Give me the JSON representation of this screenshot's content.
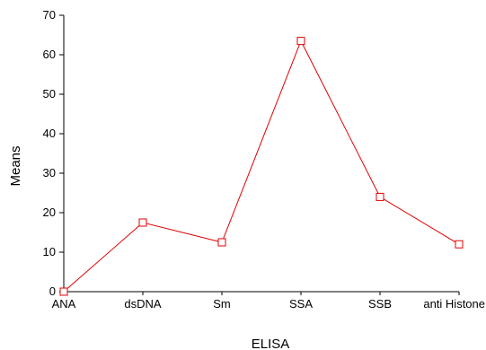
{
  "chart_data": {
    "type": "line",
    "title": "",
    "xlabel": "ELISA",
    "ylabel": "Means",
    "categories": [
      "ANA",
      "dsDNA",
      "Sm",
      "SSA",
      "SSB",
      "anti Histone"
    ],
    "series": [
      {
        "values": [
          0,
          17.5,
          12.5,
          63.5,
          24,
          12
        ],
        "color": "#e00000",
        "marker": "square-open"
      }
    ],
    "ylim": [
      0,
      70
    ],
    "yticks": [
      0,
      10,
      20,
      30,
      40,
      50,
      60,
      70
    ],
    "grid": false,
    "legend": "none"
  }
}
